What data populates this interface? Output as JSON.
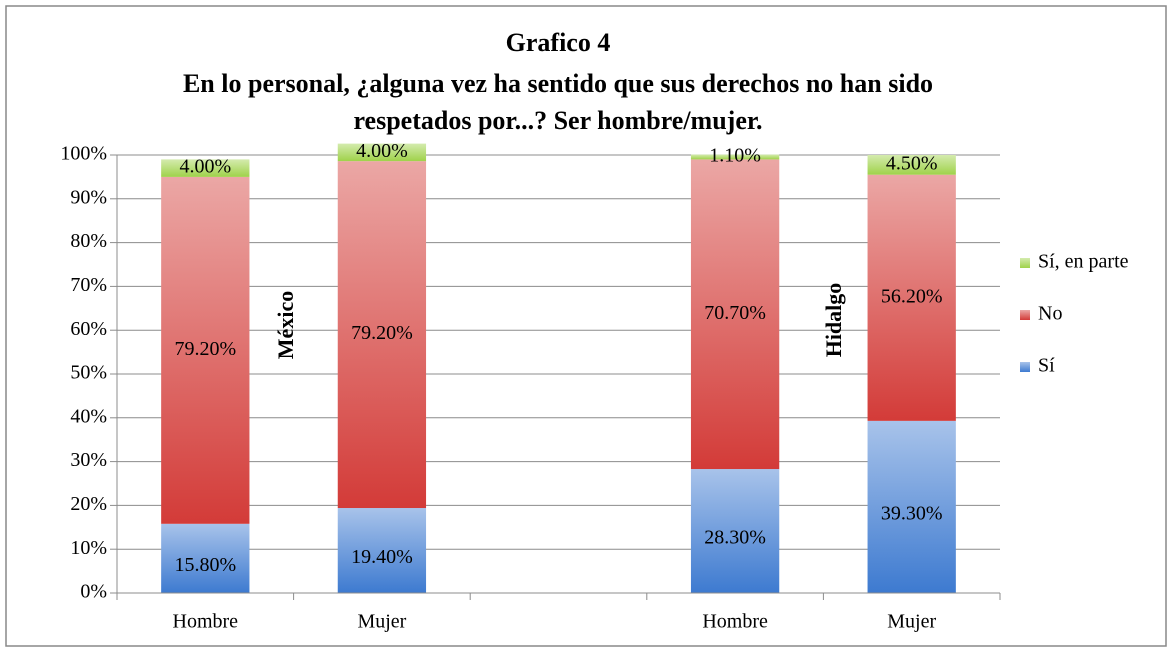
{
  "chart_data": {
    "type": "stacked_bar",
    "title": [
      "Grafico 4",
      "En lo personal, ¿alguna vez ha sentido que sus derechos no han sido",
      "respetados por...?  Ser hombre/mujer."
    ],
    "categories": [
      "Hombre",
      "Mujer",
      null,
      "Hombre",
      "Mujer"
    ],
    "series": [
      {
        "name": "Sí",
        "color": "#3d7ad0",
        "values": [
          15.8,
          19.4,
          null,
          28.3,
          39.3
        ],
        "value_labels": [
          "15.80%",
          "19.40%",
          null,
          "28.30%",
          "39.30%"
        ]
      },
      {
        "name": "No",
        "color": "#d33b38",
        "values": [
          79.2,
          79.2,
          null,
          70.7,
          56.2
        ],
        "value_labels": [
          "79.20%",
          "79.20%",
          null,
          "70.70%",
          "56.20%"
        ]
      },
      {
        "name": "Sí, en parte",
        "color": "#9fd24a",
        "values": [
          4,
          4,
          null,
          1.1,
          4.5
        ],
        "value_labels": [
          "4.00%",
          "4.00%",
          null,
          "1.10%",
          "4.50%"
        ]
      }
    ],
    "annotations": [
      "México",
      "Hidalgo"
    ],
    "ylim": [
      0,
      100
    ],
    "yticks": [
      {
        "value": 0,
        "label": "0%"
      },
      {
        "value": 10,
        "label": "10%"
      },
      {
        "value": 20,
        "label": "20%"
      },
      {
        "value": 30,
        "label": "30%"
      },
      {
        "value": 40,
        "label": "40%"
      },
      {
        "value": 50,
        "label": "50%"
      },
      {
        "value": 60,
        "label": "60%"
      },
      {
        "value": 70,
        "label": "70%"
      },
      {
        "value": 80,
        "label": "80%"
      },
      {
        "value": 90,
        "label": "90%"
      },
      {
        "value": 100,
        "label": "100%"
      }
    ],
    "grid": true,
    "legend": "right"
  }
}
